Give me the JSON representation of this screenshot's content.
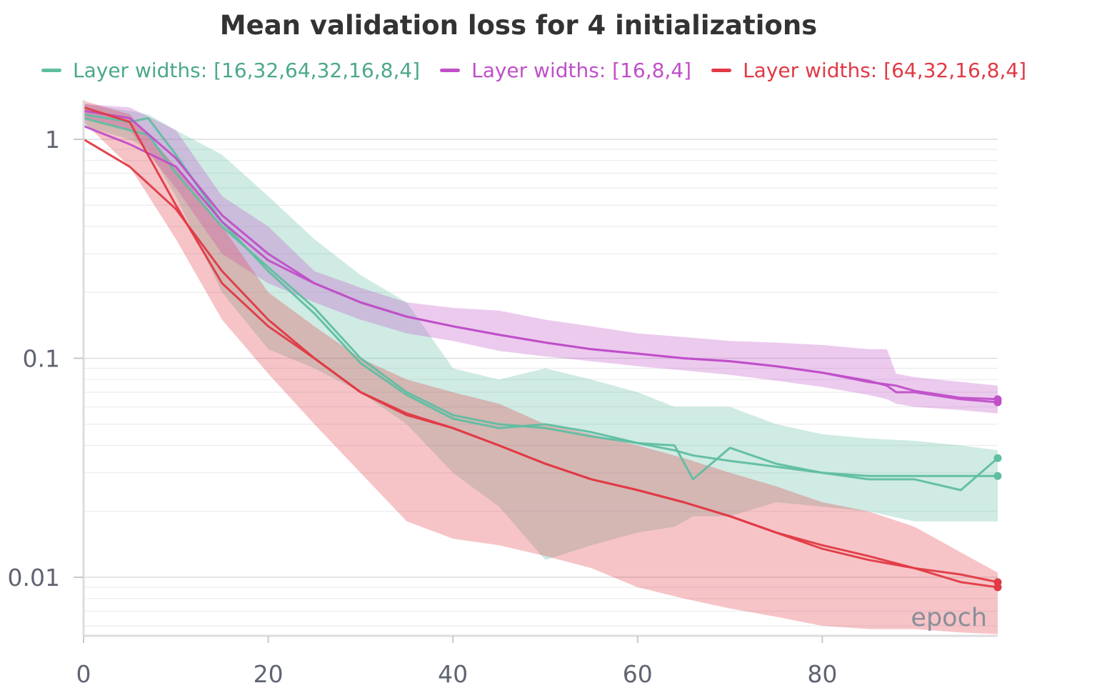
{
  "chart_data": {
    "type": "line",
    "title": "Mean validation loss for 4 initializations",
    "xlabel": "epoch",
    "ylabel": "",
    "xscale": "linear",
    "yscale": "log",
    "xlim": [
      0,
      99
    ],
    "ylim": [
      0.0055,
      1.5
    ],
    "x_ticks": [
      0,
      20,
      40,
      60,
      80
    ],
    "y_ticks": [
      {
        "value": 1,
        "label": "1"
      },
      {
        "value": 0.1,
        "label": "0.1"
      },
      {
        "value": 0.01,
        "label": "0.01"
      }
    ],
    "grid": true,
    "legend_position": "top",
    "series": [
      {
        "name": "Layer widths: [16,32,64,32,16,8,4]",
        "color": "#5fbea1",
        "band_color": "#5fbea1",
        "x": [
          0,
          5,
          7,
          10,
          15,
          20,
          25,
          30,
          35,
          40,
          45,
          50,
          55,
          60,
          64,
          66,
          70,
          75,
          80,
          85,
          90,
          95,
          99
        ],
        "mean": [
          1.25,
          1.1,
          1.05,
          0.7,
          0.4,
          0.26,
          0.17,
          0.1,
          0.07,
          0.055,
          0.05,
          0.048,
          0.044,
          0.041,
          0.038,
          0.036,
          0.034,
          0.032,
          0.03,
          0.029,
          0.029,
          0.029,
          0.029
        ],
        "run": [
          1.3,
          1.2,
          1.25,
          0.85,
          0.42,
          0.25,
          0.16,
          0.095,
          0.068,
          0.053,
          0.048,
          0.05,
          0.046,
          0.041,
          0.04,
          0.028,
          0.039,
          0.033,
          0.03,
          0.028,
          0.028,
          0.025,
          0.035
        ],
        "upper": [
          1.45,
          1.35,
          1.3,
          1.1,
          0.85,
          0.55,
          0.35,
          0.24,
          0.18,
          0.09,
          0.08,
          0.09,
          0.08,
          0.07,
          0.06,
          0.06,
          0.06,
          0.05,
          0.045,
          0.043,
          0.042,
          0.04,
          0.038
        ],
        "lower": [
          1.15,
          1.0,
          0.9,
          0.55,
          0.2,
          0.11,
          0.09,
          0.07,
          0.05,
          0.03,
          0.021,
          0.012,
          0.014,
          0.016,
          0.017,
          0.019,
          0.019,
          0.022,
          0.021,
          0.02,
          0.018,
          0.018,
          0.018
        ]
      },
      {
        "name": "Layer widths: [16,8,4]",
        "color": "#c04fc8",
        "band_color": "#c04fc8",
        "x": [
          0,
          5,
          10,
          15,
          20,
          25,
          30,
          35,
          40,
          45,
          50,
          55,
          60,
          65,
          70,
          75,
          80,
          85,
          87,
          88,
          90,
          95,
          99
        ],
        "mean": [
          1.15,
          0.95,
          0.75,
          0.42,
          0.28,
          0.22,
          0.18,
          0.155,
          0.14,
          0.128,
          0.118,
          0.11,
          0.105,
          0.1,
          0.097,
          0.092,
          0.086,
          0.078,
          0.076,
          0.075,
          0.071,
          0.066,
          0.065
        ],
        "run": [
          1.35,
          1.25,
          0.82,
          0.45,
          0.3,
          0.22,
          0.18,
          0.155,
          0.14,
          0.128,
          0.118,
          0.11,
          0.105,
          0.1,
          0.097,
          0.092,
          0.086,
          0.079,
          0.075,
          0.07,
          0.07,
          0.065,
          0.063
        ],
        "upper": [
          1.45,
          1.4,
          1.1,
          0.55,
          0.4,
          0.25,
          0.21,
          0.18,
          0.17,
          0.165,
          0.15,
          0.14,
          0.13,
          0.125,
          0.12,
          0.118,
          0.115,
          0.11,
          0.11,
          0.085,
          0.082,
          0.078,
          0.075
        ],
        "lower": [
          1.25,
          1.1,
          0.6,
          0.3,
          0.22,
          0.18,
          0.15,
          0.13,
          0.12,
          0.108,
          0.102,
          0.097,
          0.092,
          0.088,
          0.084,
          0.079,
          0.074,
          0.068,
          0.065,
          0.062,
          0.06,
          0.058,
          0.056
        ]
      },
      {
        "name": "Layer widths: [64,32,16,8,4]",
        "color": "#e03a45",
        "band_color": "#e03a45",
        "x": [
          0,
          5,
          10,
          15,
          20,
          25,
          30,
          35,
          40,
          45,
          50,
          55,
          60,
          65,
          70,
          75,
          80,
          85,
          90,
          95,
          99
        ],
        "mean": [
          1.0,
          0.75,
          0.48,
          0.25,
          0.15,
          0.1,
          0.07,
          0.056,
          0.048,
          0.04,
          0.033,
          0.028,
          0.025,
          0.022,
          0.019,
          0.016,
          0.014,
          0.0125,
          0.011,
          0.0103,
          0.0095
        ],
        "run": [
          1.4,
          1.2,
          0.5,
          0.22,
          0.14,
          0.1,
          0.07,
          0.055,
          0.048,
          0.04,
          0.033,
          0.028,
          0.025,
          0.022,
          0.019,
          0.016,
          0.0135,
          0.012,
          0.011,
          0.0095,
          0.009
        ],
        "upper": [
          1.5,
          1.3,
          0.75,
          0.4,
          0.2,
          0.14,
          0.1,
          0.08,
          0.07,
          0.062,
          0.05,
          0.045,
          0.04,
          0.035,
          0.03,
          0.026,
          0.022,
          0.02,
          0.017,
          0.013,
          0.0105
        ],
        "lower": [
          1.2,
          0.75,
          0.35,
          0.15,
          0.085,
          0.05,
          0.03,
          0.018,
          0.015,
          0.014,
          0.0125,
          0.011,
          0.009,
          0.008,
          0.0072,
          0.0066,
          0.006,
          0.0058,
          0.0058,
          0.0056,
          0.0055
        ]
      }
    ]
  }
}
